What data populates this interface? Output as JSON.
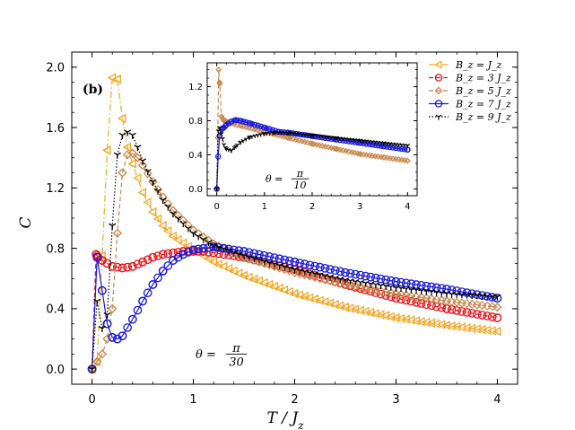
{
  "chart_data": [
    {
      "type": "line",
      "panel": "main",
      "panel_label": "(b)",
      "xlabel": "T / J",
      "xlabel_sub": "z",
      "ylabel": "C",
      "xlim": [
        -0.2,
        4.2
      ],
      "ylim": [
        -0.1,
        2.1
      ],
      "xticks": [
        0,
        1,
        2,
        3,
        4
      ],
      "yticks": [
        0.0,
        0.4,
        0.8,
        1.2,
        1.6,
        2.0
      ],
      "ytick_labels": [
        "0.0",
        "0.4",
        "0.8",
        "1.2",
        "1.6",
        "2.0"
      ],
      "annotation": {
        "prefix": "θ =",
        "numerator": "π",
        "denominator": "30"
      },
      "series": [
        {
          "name": "B_z = J_z",
          "color": "#f5a623",
          "marker": "triangle-left",
          "linestyle": "dashdot",
          "x": [
            0.0,
            0.05,
            0.1,
            0.15,
            0.2,
            0.25,
            0.3,
            0.35,
            0.4,
            0.5,
            0.6,
            0.7,
            0.8,
            1.0,
            1.2,
            1.5,
            2.0,
            2.5,
            3.0,
            3.5,
            4.0
          ],
          "y": [
            0.0,
            0.05,
            0.75,
            1.45,
            1.93,
            1.92,
            1.66,
            1.47,
            1.36,
            1.17,
            1.04,
            0.95,
            0.88,
            0.79,
            0.71,
            0.62,
            0.5,
            0.41,
            0.34,
            0.29,
            0.25
          ]
        },
        {
          "name": "B_z = 3 J_z",
          "color": "#e8141c",
          "marker": "circle",
          "linestyle": "dashed",
          "x": [
            0.0,
            0.04,
            0.06,
            0.1,
            0.15,
            0.2,
            0.3,
            0.4,
            0.5,
            0.6,
            0.7,
            0.8,
            0.9,
            1.0,
            1.1,
            1.2,
            1.5,
            2.0,
            2.5,
            3.0,
            3.5,
            4.0
          ],
          "y": [
            0.0,
            0.76,
            0.74,
            0.72,
            0.7,
            0.68,
            0.67,
            0.68,
            0.71,
            0.74,
            0.76,
            0.77,
            0.78,
            0.78,
            0.78,
            0.77,
            0.74,
            0.66,
            0.56,
            0.47,
            0.4,
            0.34
          ]
        },
        {
          "name": "B_z = 5 J_z",
          "color": "#c8884d",
          "marker": "diamond",
          "linestyle": "dashed",
          "x": [
            0.0,
            0.05,
            0.1,
            0.15,
            0.2,
            0.25,
            0.3,
            0.35,
            0.4,
            0.45,
            0.5,
            0.6,
            0.7,
            0.8,
            1.0,
            1.2,
            1.5,
            2.0,
            2.5,
            3.0,
            3.5,
            4.0
          ],
          "y": [
            0.0,
            0.05,
            0.1,
            0.2,
            0.4,
            0.9,
            1.3,
            1.42,
            1.43,
            1.4,
            1.35,
            1.24,
            1.14,
            1.05,
            0.92,
            0.83,
            0.74,
            0.64,
            0.56,
            0.5,
            0.45,
            0.41
          ]
        },
        {
          "name": "B_z = 7 J_z",
          "color": "#1a1adb",
          "marker": "circle",
          "linestyle": "solid",
          "x": [
            0.0,
            0.05,
            0.1,
            0.15,
            0.2,
            0.25,
            0.3,
            0.4,
            0.5,
            0.6,
            0.7,
            0.8,
            0.9,
            1.0,
            1.1,
            1.2,
            1.3,
            1.5,
            2.0,
            2.5,
            3.0,
            3.5,
            4.0
          ],
          "y": [
            0.0,
            0.74,
            0.52,
            0.3,
            0.21,
            0.2,
            0.22,
            0.33,
            0.45,
            0.56,
            0.65,
            0.72,
            0.76,
            0.79,
            0.8,
            0.81,
            0.8,
            0.78,
            0.71,
            0.64,
            0.58,
            0.53,
            0.47
          ]
        },
        {
          "name": "B_z = 9 J_z",
          "color": "#000000",
          "marker": "tri",
          "linestyle": "dotted",
          "x": [
            0.0,
            0.05,
            0.1,
            0.15,
            0.2,
            0.25,
            0.3,
            0.35,
            0.4,
            0.45,
            0.5,
            0.6,
            0.7,
            0.8,
            1.0,
            1.2,
            1.5,
            2.0,
            2.5,
            3.0,
            3.5,
            4.0
          ],
          "y": [
            0.0,
            0.45,
            0.27,
            0.36,
            0.95,
            1.42,
            1.55,
            1.57,
            1.55,
            1.47,
            1.38,
            1.24,
            1.12,
            1.03,
            0.9,
            0.82,
            0.75,
            0.66,
            0.59,
            0.54,
            0.5,
            0.48
          ]
        }
      ]
    },
    {
      "type": "line",
      "panel": "inset",
      "xlim": [
        -0.2,
        4.2
      ],
      "ylim": [
        -0.08,
        1.48
      ],
      "xticks": [
        0,
        1,
        2,
        3,
        4
      ],
      "yticks": [
        0.0,
        0.4,
        0.8,
        1.2
      ],
      "ytick_labels": [
        "0.0",
        "0.4",
        "0.8",
        "1.2"
      ],
      "annotation": {
        "prefix": "θ =",
        "numerator": "π",
        "denominator": "10"
      },
      "series": [
        {
          "name": "B_z = 5 J_z",
          "color": "#c8884d",
          "marker": "diamond",
          "linestyle": "dashed",
          "x": [
            0.0,
            0.02,
            0.04,
            0.06,
            0.1,
            0.15,
            0.2,
            0.3,
            0.5,
            0.8,
            1.0,
            1.5,
            2.0,
            2.5,
            3.0,
            3.5,
            4.0
          ],
          "y": [
            0.0,
            0.6,
            1.4,
            1.25,
            0.85,
            0.8,
            0.79,
            0.77,
            0.74,
            0.7,
            0.67,
            0.6,
            0.53,
            0.47,
            0.41,
            0.37,
            0.33
          ]
        },
        {
          "name": "B_z = 7 J_z",
          "color": "#1a1adb",
          "marker": "circle",
          "linestyle": "solid",
          "x": [
            0.0,
            0.03,
            0.06,
            0.1,
            0.15,
            0.2,
            0.3,
            0.4,
            0.5,
            0.7,
            1.0,
            1.3,
            1.5,
            2.0,
            2.5,
            3.0,
            3.5,
            4.0
          ],
          "y": [
            0.0,
            0.38,
            0.62,
            0.7,
            0.72,
            0.75,
            0.79,
            0.81,
            0.8,
            0.77,
            0.72,
            0.67,
            0.66,
            0.62,
            0.58,
            0.54,
            0.5,
            0.46
          ]
        },
        {
          "name": "B_z = 9 J_z",
          "color": "#000000",
          "marker": "tri",
          "linestyle": "dotted",
          "x": [
            0.0,
            0.03,
            0.06,
            0.1,
            0.15,
            0.2,
            0.3,
            0.4,
            0.5,
            0.7,
            1.0,
            1.2,
            1.5,
            2.0,
            2.5,
            3.0,
            3.5,
            4.0
          ],
          "y": [
            0.0,
            0.68,
            0.72,
            0.65,
            0.52,
            0.47,
            0.45,
            0.5,
            0.55,
            0.61,
            0.65,
            0.66,
            0.66,
            0.63,
            0.6,
            0.57,
            0.54,
            0.51
          ]
        }
      ]
    }
  ],
  "legend": {
    "placement": "top-right",
    "entries": [
      {
        "label": "B_z = J_z",
        "color": "#f5a623",
        "marker": "triangle-left",
        "linestyle": "dashdot"
      },
      {
        "label": "B_z = 3 J_z",
        "color": "#e8141c",
        "marker": "circle",
        "linestyle": "dashed"
      },
      {
        "label": "B_z = 5 J_z",
        "color": "#c8884d",
        "marker": "diamond",
        "linestyle": "dashed"
      },
      {
        "label": "B_z = 7 J_z",
        "color": "#1a1adb",
        "marker": "circle",
        "linestyle": "solid"
      },
      {
        "label": "B_z = 9 J_z",
        "color": "#000000",
        "marker": "tri",
        "linestyle": "dotted"
      }
    ]
  }
}
